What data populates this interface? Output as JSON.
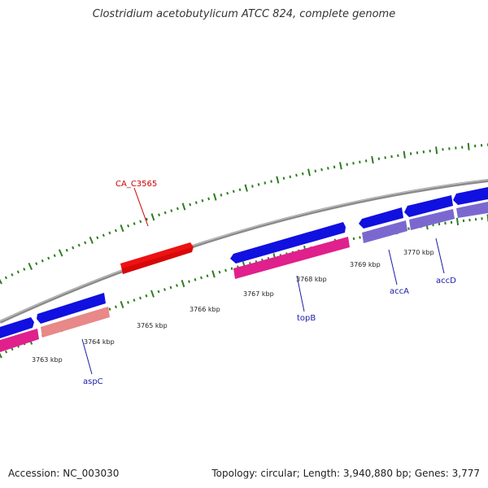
{
  "header": {
    "title": "Clostridium acetobutylicum ATCC 824, complete genome"
  },
  "footer": {
    "accession": "Accession: NC_003030",
    "summary": "Topology: circular; Length: 3,940,880 bp; Genes: 3,777"
  },
  "map": {
    "kbp_labels": [
      "3763 kbp",
      "3764 kbp",
      "3765 kbp",
      "3766 kbp",
      "3767 kbp",
      "3768 kbp",
      "3769 kbp",
      "3770 kbp"
    ],
    "gene_labels": {
      "ca_c3565": "CA_C3565",
      "aspc": "aspC",
      "topb": "topB",
      "acca": "accA",
      "accd": "accD"
    },
    "colors": {
      "backbone": "#8a8a8a",
      "tick": "#2e7d1e",
      "cds_forward": "#1010e0",
      "cds_reverse_red": "#ee1111",
      "rna_pink": "#e0208c",
      "rna_salmon": "#e88888",
      "rna_purple": "#7a68d0",
      "label_red": "#cc0000",
      "label_blue": "#1a1aaa"
    }
  }
}
